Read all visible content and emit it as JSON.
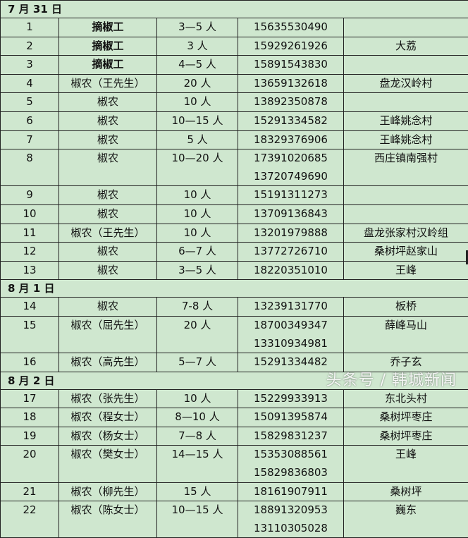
{
  "colors": {
    "background": "#cfe7cf",
    "border": "#222222"
  },
  "watermark": "头条号 / 韩城新闻",
  "groups": [
    {
      "date": "7 月 31 日",
      "rows": [
        {
          "no": "1",
          "type": "摘椒工",
          "bold": true,
          "count": "3—5 人",
          "phones": [
            "15635530490"
          ],
          "location": ""
        },
        {
          "no": "2",
          "type": "摘椒工",
          "bold": true,
          "count": "3 人",
          "phones": [
            "15929261926"
          ],
          "location": "大荔"
        },
        {
          "no": "3",
          "type": "摘椒工",
          "bold": true,
          "count": "4—5 人",
          "phones": [
            "15891543830"
          ],
          "location": ""
        },
        {
          "no": "4",
          "type": "椒农（王先生）",
          "count": "20 人",
          "phones": [
            "13659132618"
          ],
          "location": "盘龙汉岭村"
        },
        {
          "no": "5",
          "type": "椒农",
          "count": "10 人",
          "phones": [
            "13892350878"
          ],
          "location": ""
        },
        {
          "no": "6",
          "type": "椒农",
          "count": "10—15 人",
          "phones": [
            "15291334582"
          ],
          "location": "王峰姚念村"
        },
        {
          "no": "7",
          "type": "椒农",
          "count": "5 人",
          "phones": [
            "18329376906"
          ],
          "location": "王峰姚念村"
        },
        {
          "no": "8",
          "type": "椒农",
          "count": "10—20 人",
          "phones": [
            "17391020685",
            "13720749690"
          ],
          "location": "西庄镇南强村"
        },
        {
          "no": "9",
          "type": "椒农",
          "count": "10 人",
          "phones": [
            "15191311273"
          ],
          "location": ""
        },
        {
          "no": "10",
          "type": "椒农",
          "count": "10 人",
          "phones": [
            "13709136843"
          ],
          "location": ""
        },
        {
          "no": "11",
          "type": "椒农（王先生）",
          "count": "10 人",
          "phones": [
            "13201979888"
          ],
          "location": "盘龙张家村汉岭组"
        },
        {
          "no": "12",
          "type": "椒农",
          "count": "6—7 人",
          "phones": [
            "13772726710"
          ],
          "location": "桑树坪赵家山"
        },
        {
          "no": "13",
          "type": "椒农",
          "count": "3—5 人",
          "phones": [
            "18220351010"
          ],
          "location": "王峰"
        }
      ]
    },
    {
      "date": "8 月 1 日",
      "rows": [
        {
          "no": "14",
          "type": "椒农",
          "count": "7-8 人",
          "phones": [
            "13239131770"
          ],
          "location": "板桥"
        },
        {
          "no": "15",
          "type": "椒农（屈先生）",
          "count": "20 人",
          "phones": [
            "18700349347",
            "13310934981"
          ],
          "location": "薛峰马山"
        },
        {
          "no": "16",
          "type": "椒农（高先生）",
          "count": "5—7 人",
          "phones": [
            "15291334482"
          ],
          "location": "乔子玄"
        }
      ]
    },
    {
      "date": "8 月 2 日",
      "rows": [
        {
          "no": "17",
          "type": "椒农（张先生）",
          "count": "10 人",
          "phones": [
            "15229933913"
          ],
          "location": "东北头村"
        },
        {
          "no": "18",
          "type": "椒农（程女士）",
          "count": "8—10 人",
          "phones": [
            "15091395874"
          ],
          "location": "桑树坪枣庄"
        },
        {
          "no": "19",
          "type": "椒农（杨女士）",
          "count": "7—8 人",
          "phones": [
            "15829831237"
          ],
          "location": "桑树坪枣庄"
        },
        {
          "no": "20",
          "type": "椒农（樊女士）",
          "count": "14—15 人",
          "phones": [
            "15353088561",
            "15829836803"
          ],
          "location": "王峰"
        },
        {
          "no": "21",
          "type": "椒农（柳先生）",
          "count": "15 人",
          "phones": [
            "18161907911"
          ],
          "location": "桑树坪"
        },
        {
          "no": "22",
          "type": "椒农（陈女士）",
          "count": "10—15 人",
          "phones": [
            "18891320953",
            "13110305028"
          ],
          "location": "巍东"
        }
      ]
    }
  ]
}
